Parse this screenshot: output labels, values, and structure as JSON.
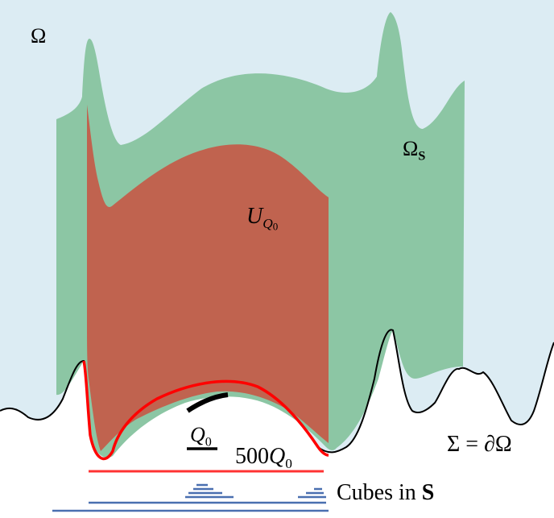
{
  "labels": {
    "omega": "Ω",
    "omega_s": {
      "base": "Ω",
      "sub": "S"
    },
    "u_q0": {
      "base": "U",
      "sub": "Q",
      "subsub": "0"
    },
    "q0": {
      "base": "Q",
      "sub": "0"
    },
    "q500": {
      "prefix": "500",
      "base": "Q",
      "sub": "0"
    },
    "boundary": "Σ = ∂Ω",
    "cubes": {
      "text": "Cubes in ",
      "bold": "S"
    }
  },
  "colors": {
    "domain_fill": "#dcecf3",
    "omega_s_fill": "#8cc6a4",
    "u_q0_fill": "#c0634f",
    "boundary_stroke": "#000000",
    "q500_stroke": "#ff0000",
    "q0_stroke": "#000000",
    "cubes_stroke": "#4a6fb0"
  },
  "icons": {}
}
